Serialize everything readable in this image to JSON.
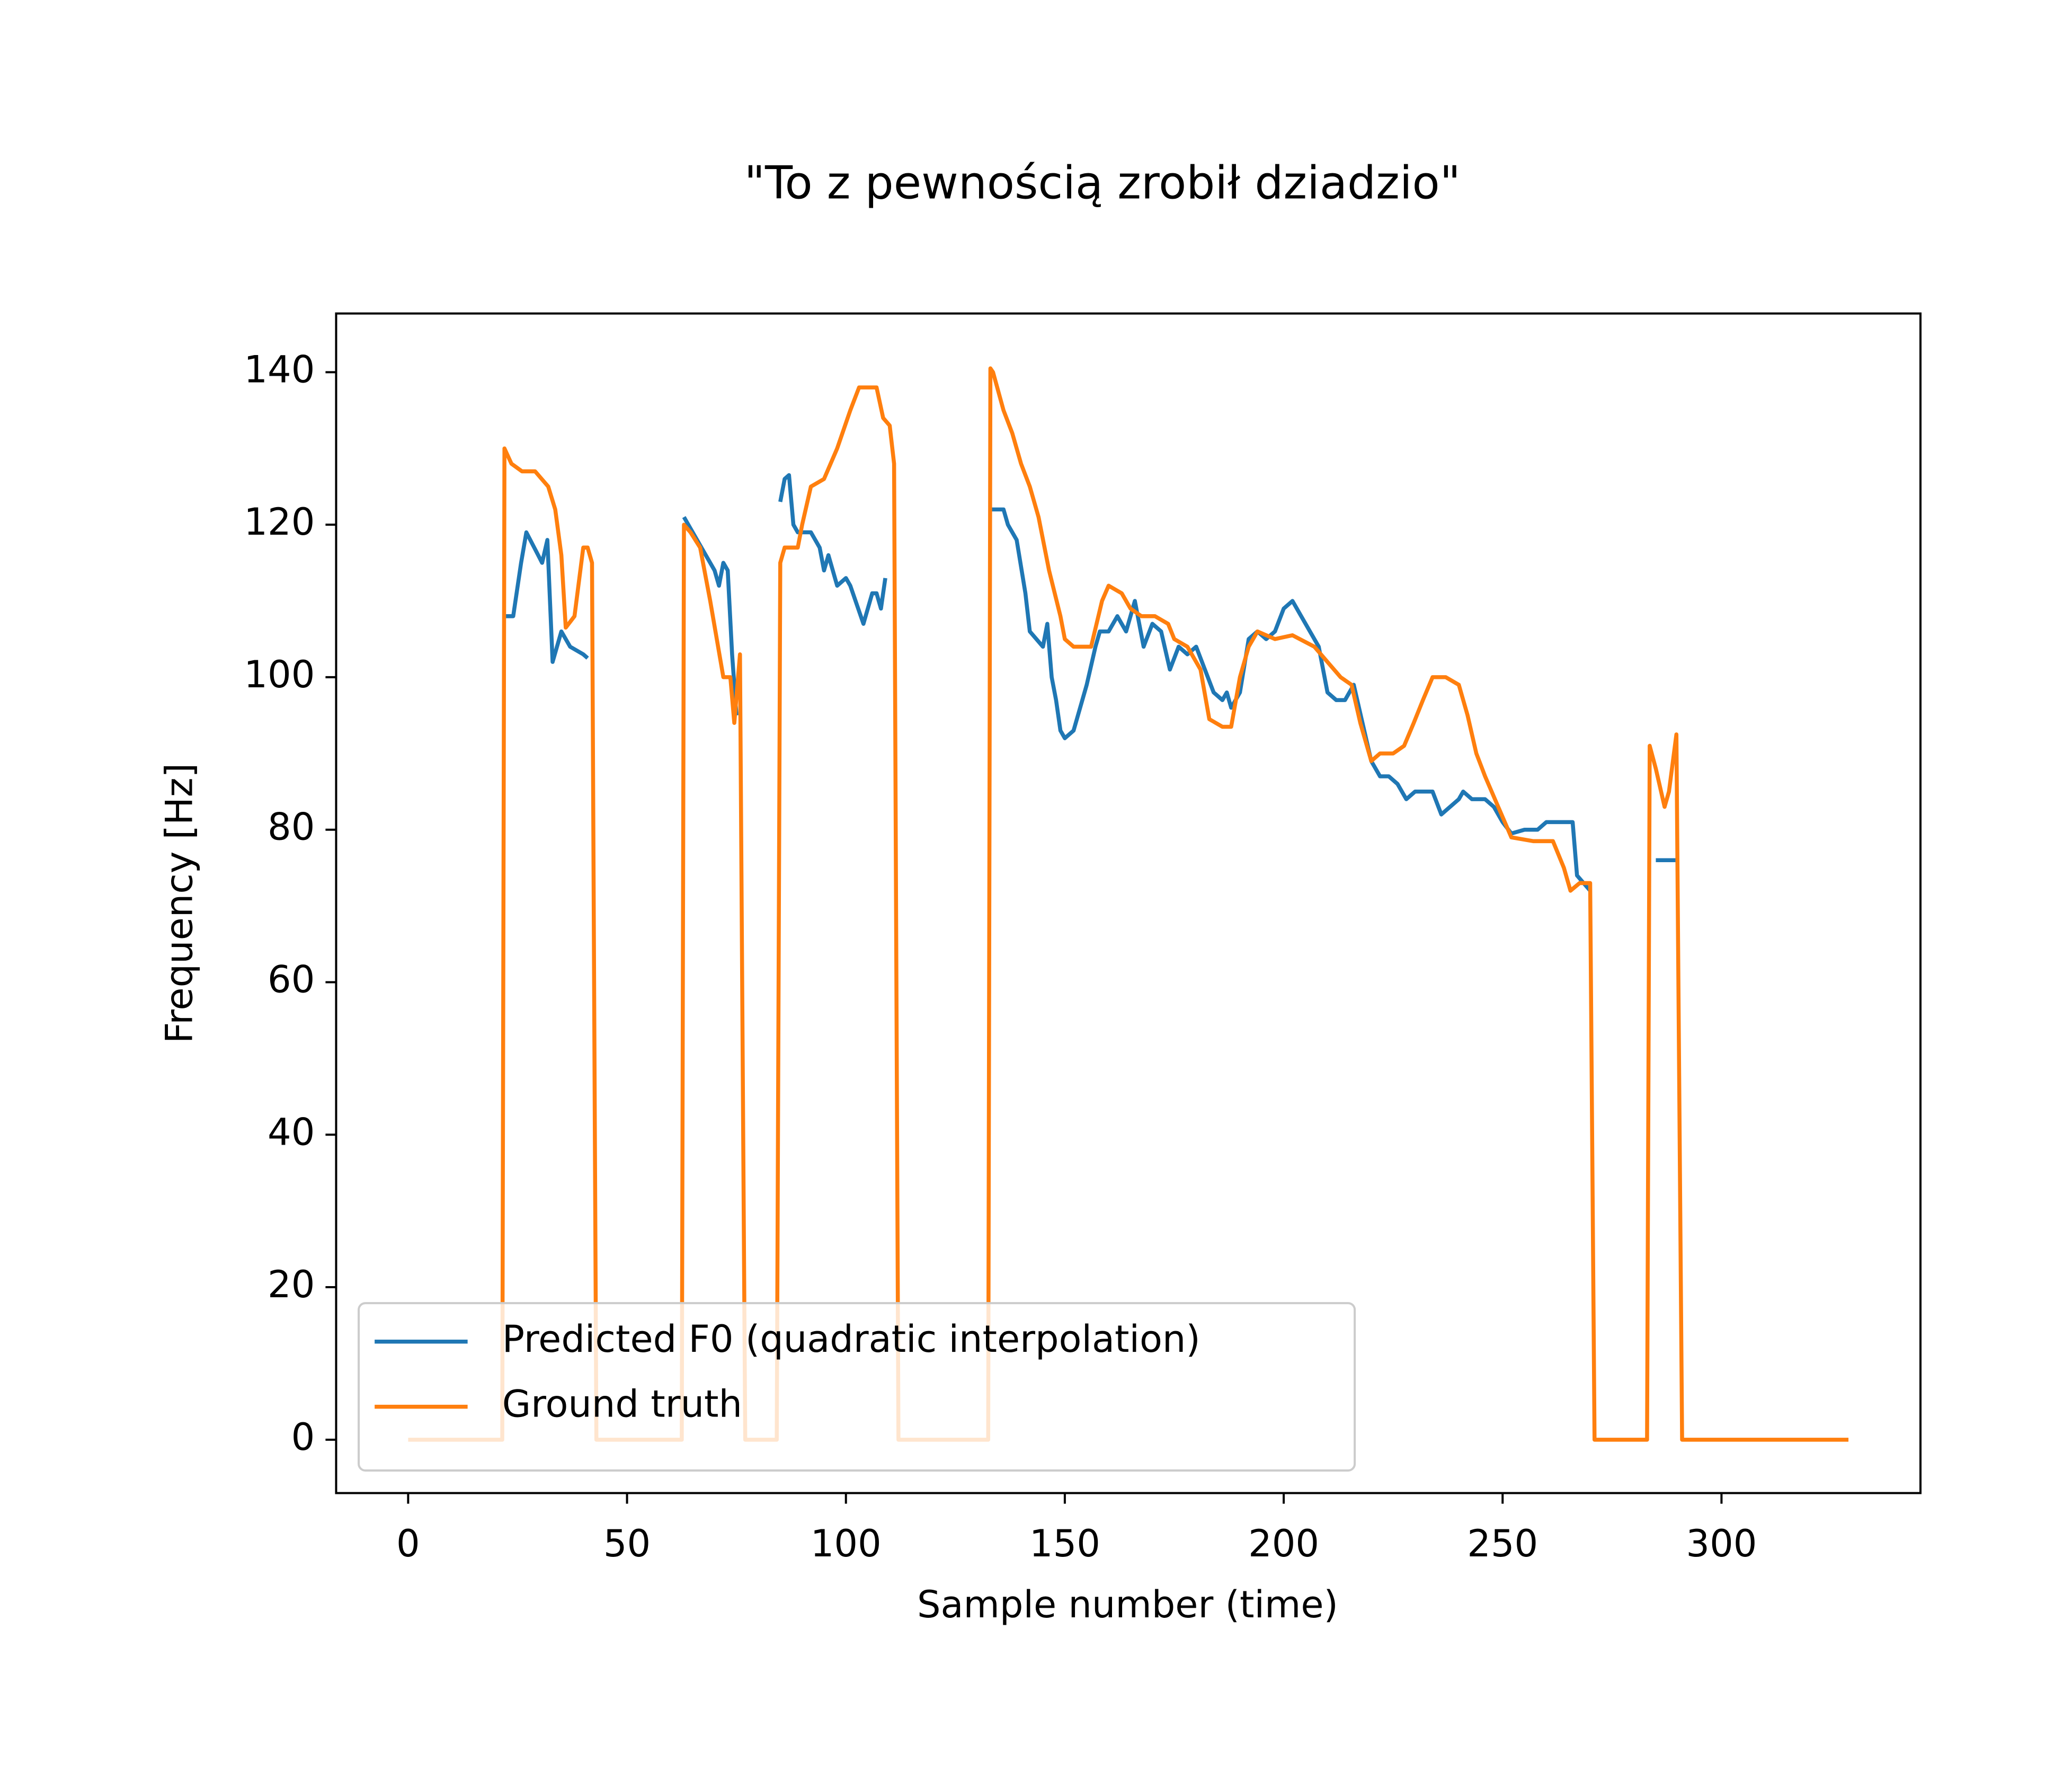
{
  "chart_data": {
    "type": "line",
    "title": "\"To z pewnością zrobił dziadzio\"",
    "xlabel": "Sample number (time)",
    "ylabel": "Frequency [Hz]",
    "xlim": [
      -16.45,
      345.45
    ],
    "ylim": [
      -7.0,
      147.7
    ],
    "xticks": [
      0,
      50,
      100,
      150,
      200,
      250,
      300
    ],
    "yticks": [
      0,
      20,
      40,
      60,
      80,
      100,
      120,
      140
    ],
    "grid": false,
    "legend_position": "lower left",
    "series": [
      {
        "name": "Predicted F0 (quadratic interpolation)",
        "color": "#1f77b4",
        "x": [
          22,
          24,
          25.8,
          27,
          28.8,
          30.6,
          31.8,
          33,
          35,
          37,
          40,
          41,
          42,
          63,
          67,
          70,
          71,
          72,
          73,
          74,
          75,
          76,
          85,
          86,
          87,
          88,
          89,
          92,
          94,
          95,
          96,
          98,
          100,
          101,
          104,
          106,
          107,
          108,
          109,
          110,
          133,
          136,
          137,
          139,
          141,
          142,
          145,
          146,
          147,
          148,
          149,
          150,
          152,
          155,
          157,
          158,
          160,
          162,
          164,
          166,
          168,
          170,
          172,
          174,
          176,
          178,
          180,
          182,
          184,
          186,
          187,
          188,
          190,
          192,
          194,
          196,
          198,
          200,
          202,
          204,
          206,
          208,
          210,
          212,
          214,
          216,
          218,
          220,
          222,
          224,
          226,
          228,
          230,
          232,
          234,
          236,
          238,
          240,
          241,
          243,
          246,
          248,
          250,
          252,
          255,
          258,
          260,
          264,
          266,
          267,
          270,
          271,
          285,
          290
        ],
        "values": [
          108,
          108,
          115,
          119,
          117,
          115,
          118,
          102,
          106,
          104,
          103,
          102.5,
          null,
          121,
          117,
          114,
          112,
          115,
          114,
          103,
          95,
          null,
          123,
          126,
          126.5,
          120,
          119,
          119,
          117,
          114,
          116,
          112,
          113,
          112,
          107,
          111,
          111,
          109,
          113,
          null,
          122,
          122,
          120,
          118,
          111,
          106,
          104,
          107,
          100,
          97,
          93,
          92,
          93,
          99,
          104,
          106,
          106,
          108,
          106,
          110,
          104,
          107,
          106,
          101,
          104,
          103,
          104,
          101,
          98,
          97,
          98,
          96,
          98,
          105,
          106,
          105,
          106,
          109,
          110,
          108,
          106,
          104,
          98,
          97,
          97,
          99,
          94,
          89,
          87,
          87,
          86,
          84,
          85,
          85,
          85,
          82,
          83,
          84,
          85,
          84,
          84,
          83,
          81,
          79.5,
          80,
          80,
          81,
          81,
          81,
          74,
          72,
          null,
          76,
          76
        ]
      },
      {
        "name": "Ground truth",
        "color": "#ff7f0e",
        "x": [
          0,
          21.5,
          22,
          23.6,
          26,
          29,
          32,
          33.6,
          35,
          36,
          38,
          40,
          41,
          42,
          43,
          62.5,
          63,
          64.5,
          66.7,
          69,
          72,
          73.6,
          74.5,
          75.8,
          77,
          84.2,
          85,
          86,
          89,
          90,
          92,
          95,
          98,
          101,
          103,
          107,
          108.5,
          110,
          111,
          112,
          132.5,
          133,
          133.6,
          136,
          138,
          140,
          142,
          144,
          146.4,
          149,
          150,
          152,
          156,
          158.5,
          160,
          163,
          165,
          167.5,
          170.6,
          173.6,
          175,
          178,
          181,
          183,
          186,
          188,
          190,
          192,
          194,
          198,
          202,
          207,
          210,
          213,
          215.5,
          217.5,
          220,
          222,
          225,
          227.5,
          229.7,
          231.8,
          234,
          237,
          240,
          242,
          244,
          246,
          249,
          252,
          257,
          261.5,
          264,
          265.5,
          267.6,
          270,
          271,
          283,
          283.6,
          285,
          287,
          288,
          289.7,
          291,
          329
        ],
        "values": [
          0,
          0,
          130,
          128,
          127,
          127,
          125,
          122,
          116,
          106.5,
          108,
          117,
          117,
          115,
          0,
          0,
          120,
          119,
          117,
          110,
          100,
          100,
          94,
          103,
          0,
          0,
          115,
          117,
          117,
          120,
          125,
          126,
          130,
          135,
          138,
          138,
          134,
          133,
          128,
          0,
          0,
          140.5,
          140,
          135,
          132,
          128,
          125,
          121,
          114,
          108,
          105,
          104,
          104,
          110,
          112,
          111,
          109,
          108,
          108,
          107,
          105,
          104,
          101,
          94.5,
          93.5,
          93.5,
          100,
          104,
          106,
          105,
          105.5,
          104,
          102,
          100,
          99,
          94,
          89,
          90,
          90,
          91,
          94,
          97,
          100,
          100,
          99,
          95,
          90,
          87,
          83,
          79,
          78.5,
          78.5,
          75,
          72,
          73,
          73,
          0,
          0,
          91,
          88,
          83,
          85,
          92.5,
          0,
          0
        ]
      }
    ]
  }
}
